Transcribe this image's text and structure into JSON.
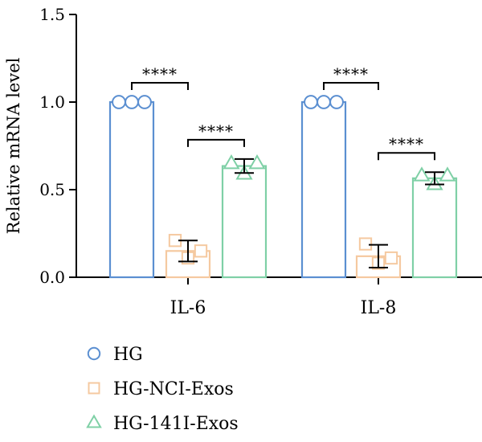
{
  "chart_data": {
    "type": "bar",
    "title": "",
    "xlabel": "",
    "ylabel": "Relative mRNA level",
    "ylim": [
      0,
      1.5
    ],
    "yticks": [
      0.0,
      0.5,
      1.0,
      1.5
    ],
    "ytick_labels": [
      "0.0",
      "0.5",
      "1.0",
      "1.5"
    ],
    "categories": [
      "IL-6",
      "IL-8"
    ],
    "grid": false,
    "legend_position": "bottom-left",
    "series": [
      {
        "name": "HG",
        "color": "#5b8fd1",
        "marker": "circle",
        "values": [
          1.0,
          1.0
        ],
        "errors": [
          0,
          0
        ],
        "points": [
          [
            1.0,
            1.0,
            1.0
          ],
          [
            1.0,
            1.0,
            1.0
          ]
        ]
      },
      {
        "name": "HG-NCI-Exos",
        "color": "#f5c9a0",
        "marker": "square",
        "values": [
          0.15,
          0.12
        ],
        "errors": [
          0.06,
          0.065
        ],
        "points": [
          [
            0.21,
            0.11,
            0.15
          ],
          [
            0.19,
            0.08,
            0.11
          ]
        ]
      },
      {
        "name": "HG-141I-Exos",
        "color": "#7fd0a6",
        "marker": "triangle",
        "values": [
          0.635,
          0.565
        ],
        "errors": [
          0.04,
          0.035
        ],
        "points": [
          [
            0.65,
            0.59,
            0.65
          ],
          [
            0.58,
            0.53,
            0.58
          ]
        ]
      }
    ],
    "significance": [
      {
        "category": 0,
        "from": 0,
        "to": 1,
        "label": "****"
      },
      {
        "category": 0,
        "from": 1,
        "to": 2,
        "label": "****"
      },
      {
        "category": 1,
        "from": 0,
        "to": 1,
        "label": "****"
      },
      {
        "category": 1,
        "from": 1,
        "to": 2,
        "label": "****"
      }
    ]
  }
}
